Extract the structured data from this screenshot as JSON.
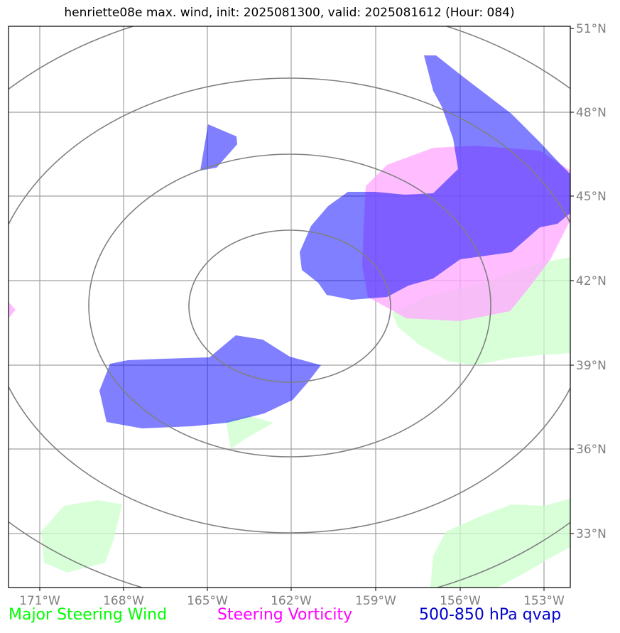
{
  "title": "henriette08e max. wind, init: 2025081300, valid: 2025081612 (Hour: 084)",
  "lon_ticks": [
    "171°W",
    "168°W",
    "165°W",
    "162°W",
    "159°W",
    "156°W",
    "153°W"
  ],
  "lat_ticks": [
    "51°N",
    "48°N",
    "45°N",
    "42°N",
    "39°N",
    "36°N",
    "33°N"
  ],
  "legend": {
    "steering_wind": "Major Steering Wind",
    "vorticity": "Steering Vorticity",
    "qvap": "500-850 hPa qvap"
  },
  "colors": {
    "steering_wind": "#00ff00",
    "vorticity": "#ff00ff",
    "qvap": "#0000cc",
    "wind_fill": "#ccffcc",
    "vort_fill": "#ffaaff",
    "qvap_fill": "#0000ff",
    "grid": "#a0a0a0",
    "rings": "#808080"
  }
}
